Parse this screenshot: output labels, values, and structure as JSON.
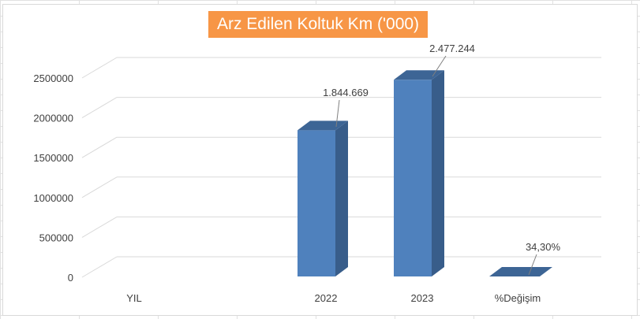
{
  "chart_data": {
    "type": "bar",
    "title": "Arz Edilen Koltuk Km ('000)",
    "categories": [
      "YIL",
      "2022",
      "2023",
      "%Değişim"
    ],
    "values": [
      0,
      1844669,
      2477244,
      0.343
    ],
    "data_labels": [
      "",
      "1.844.669",
      "2.477.244",
      "34,30%"
    ],
    "ylim": [
      0,
      2500000
    ],
    "yticks": [
      0,
      500000,
      1000000,
      1500000,
      2000000,
      2500000
    ],
    "ytick_labels": [
      "0",
      "500000",
      "1000000",
      "1500000",
      "2000000",
      "2500000"
    ],
    "xlabel": "",
    "ylabel": "",
    "grid": true,
    "legend": "none",
    "bar_color": "#4f81bd",
    "title_background": "#f79646"
  }
}
